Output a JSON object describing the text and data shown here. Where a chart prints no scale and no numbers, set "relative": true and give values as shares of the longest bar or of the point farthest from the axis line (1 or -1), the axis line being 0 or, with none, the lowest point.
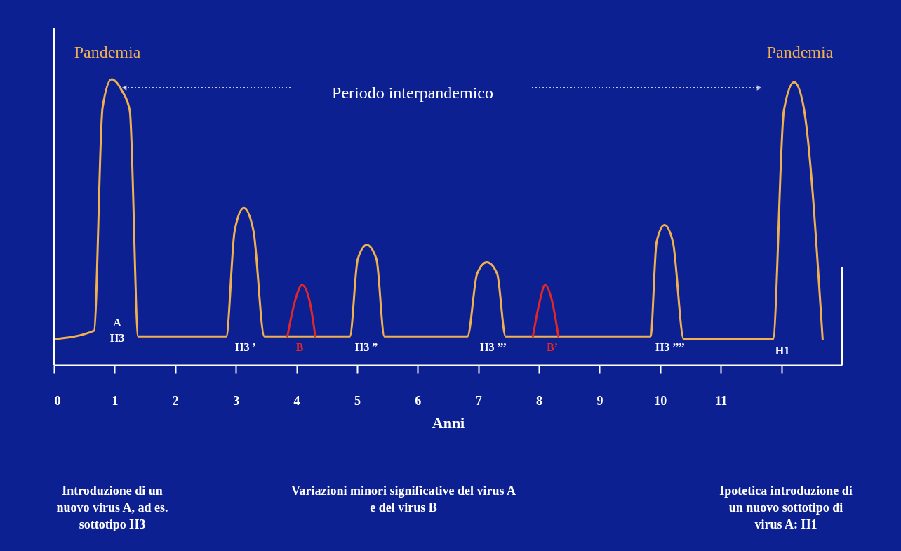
{
  "chart_data": {
    "type": "line",
    "relative": true,
    "xlabel": "Anni",
    "xlim": [
      0,
      13
    ],
    "xticks": [
      0,
      1,
      2,
      3,
      4,
      5,
      6,
      7,
      8,
      9,
      10,
      11,
      {
        "value": 12,
        "label": null
      }
    ],
    "series": [
      {
        "color": "#f0b050",
        "x": [
          0,
          0.66,
          0.8,
          0.95,
          1.12,
          1.25,
          1.39,
          2.84,
          2.98,
          3.13,
          3.29,
          3.47,
          4.88,
          5.01,
          5.16,
          5.32,
          5.45,
          6.82,
          6.98,
          7.14,
          7.31,
          7.45,
          9.84,
          9.94,
          10.07,
          10.21,
          10.39,
          11.86,
          12.04,
          12.21,
          12.36,
          12.68
        ],
        "values": [
          0.09,
          0.12,
          0.9,
          1.0,
          0.96,
          0.89,
          0.1,
          0.1,
          0.47,
          0.55,
          0.47,
          0.1,
          0.1,
          0.37,
          0.42,
          0.37,
          0.1,
          0.1,
          0.32,
          0.36,
          0.32,
          0.1,
          0.1,
          0.43,
          0.49,
          0.43,
          0.09,
          0.09,
          0.89,
          0.99,
          0.91,
          0.09
        ]
      },
      {
        "color": "#e02828",
        "x": [
          3.85,
          3.97,
          4.09,
          4.22,
          4.31
        ],
        "values": [
          0.1,
          0.22,
          0.28,
          0.22,
          0.1
        ]
      },
      {
        "color": "#e02828",
        "x": [
          7.9,
          8.01,
          8.1,
          8.22,
          8.32
        ],
        "values": [
          0.1,
          0.22,
          0.28,
          0.22,
          0.1
        ]
      }
    ],
    "annotations": [
      "A\nH3",
      "H3 ’",
      "B",
      "H3 ”",
      "H3 ’’’",
      "B’",
      "H3 ’’’’",
      "H1",
      "Pandemia",
      "Pandemia",
      "Periodo interpandemico",
      "Introduzione di un\nnuovo virus A, ad es.\nsottotipo H3",
      "Variazioni minori significative del virus A\ne del virus B",
      "Ipotetica introduzione di\nun nuovo sottotipo di\nvirus A: H1"
    ]
  }
}
